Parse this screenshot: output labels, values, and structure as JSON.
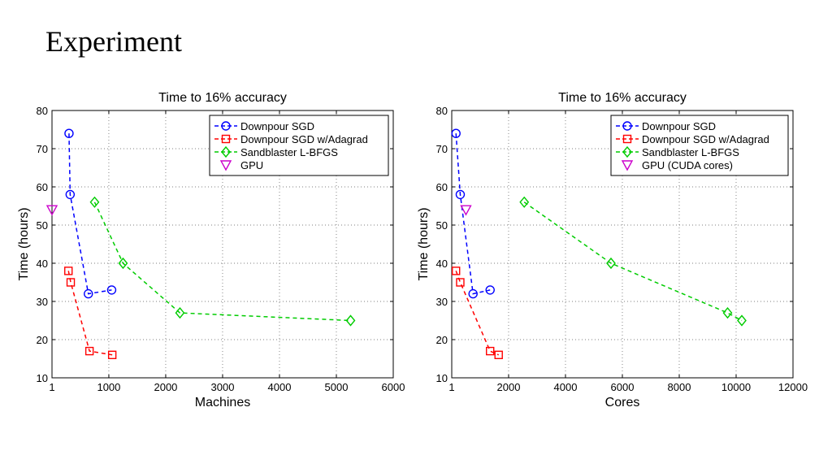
{
  "slide": {
    "title": "Experiment"
  },
  "chart_data": [
    {
      "type": "line",
      "title": "Time to 16% accuracy",
      "xlabel": "Machines",
      "ylabel": "Time (hours)",
      "xlim": [
        1,
        6000
      ],
      "ylim": [
        10,
        80
      ],
      "xticks": [
        1,
        1000,
        2000,
        3000,
        4000,
        5000,
        6000
      ],
      "xtick_labels": [
        "1",
        "1000",
        "2000",
        "3000",
        "4000",
        "5000",
        "6000"
      ],
      "yticks": [
        10,
        20,
        30,
        40,
        50,
        60,
        70,
        80
      ],
      "ytick_labels": [
        "10",
        "20",
        "30",
        "40",
        "50",
        "60",
        "70",
        "80"
      ],
      "grid": true,
      "legend_position": "top-right",
      "series": [
        {
          "name": "Downpour SGD",
          "color": "#0000ff",
          "marker": "circle",
          "line": "dashed",
          "x": [
            300,
            320,
            640,
            1050
          ],
          "y": [
            74,
            58,
            32,
            33
          ]
        },
        {
          "name": "Downpour SGD w/Adagrad",
          "color": "#ff0000",
          "marker": "square",
          "line": "dashed",
          "x": [
            290,
            330,
            660,
            1060
          ],
          "y": [
            38,
            35,
            17,
            16
          ]
        },
        {
          "name": "Sandblaster L-BFGS",
          "color": "#00cc00",
          "marker": "diamond",
          "line": "dashed",
          "x": [
            750,
            1250,
            2250,
            5250
          ],
          "y": [
            56,
            40,
            27,
            25
          ]
        },
        {
          "name": "GPU",
          "color": "#cc00cc",
          "marker": "triangle-down",
          "line": "none",
          "x": [
            1
          ],
          "y": [
            54
          ]
        }
      ]
    },
    {
      "type": "line",
      "title": "Time to 16% accuracy",
      "xlabel": "Cores",
      "ylabel": "Time (hours)",
      "xlim": [
        1,
        12000
      ],
      "ylim": [
        10,
        80
      ],
      "xticks": [
        1,
        2000,
        4000,
        6000,
        8000,
        10000,
        12000
      ],
      "xtick_labels": [
        "1",
        "2000",
        "4000",
        "6000",
        "8000",
        "10000",
        "12000"
      ],
      "yticks": [
        10,
        20,
        30,
        40,
        50,
        60,
        70,
        80
      ],
      "ytick_labels": [
        "10",
        "20",
        "30",
        "40",
        "50",
        "60",
        "70",
        "80"
      ],
      "grid": true,
      "legend_position": "top-right",
      "series": [
        {
          "name": "Downpour SGD",
          "color": "#0000ff",
          "marker": "circle",
          "line": "dashed",
          "x": [
            150,
            300,
            750,
            1350
          ],
          "y": [
            74,
            58,
            32,
            33
          ]
        },
        {
          "name": "Downpour SGD w/Adagrad",
          "color": "#ff0000",
          "marker": "square",
          "line": "dashed",
          "x": [
            150,
            300,
            1350,
            1650
          ],
          "y": [
            38,
            35,
            17,
            16
          ]
        },
        {
          "name": "Sandblaster L-BFGS",
          "color": "#00cc00",
          "marker": "diamond",
          "line": "dashed",
          "x": [
            2550,
            5600,
            9700,
            10200
          ],
          "y": [
            56,
            40,
            27,
            25
          ]
        },
        {
          "name": "GPU (CUDA cores)",
          "color": "#cc00cc",
          "marker": "triangle-down",
          "line": "none",
          "x": [
            500
          ],
          "y": [
            54
          ]
        }
      ]
    }
  ]
}
